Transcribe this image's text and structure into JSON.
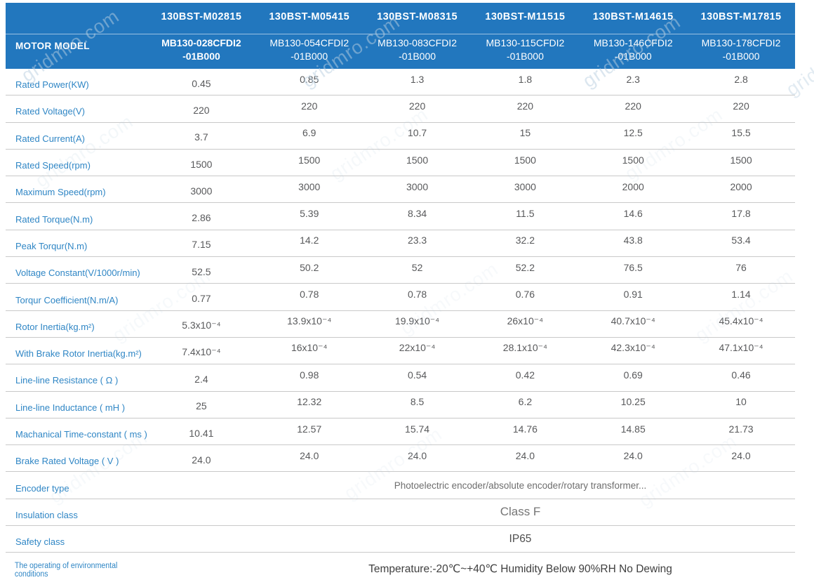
{
  "watermark": {
    "text": "gridmro.com"
  },
  "table": {
    "corner_label": "MOTOR MODEL",
    "models": [
      {
        "series": "130BST-M02815",
        "code": "MB130-028CFDI2",
        "code2": "-01B000"
      },
      {
        "series": "130BST-M05415",
        "code": "MB130-054CFDI2",
        "code2": "-01B000"
      },
      {
        "series": "130BST-M08315",
        "code": "MB130-083CFDI2",
        "code2": "-01B000"
      },
      {
        "series": "130BST-M11515",
        "code": "MB130-115CFDI2",
        "code2": "-01B000"
      },
      {
        "series": "130BST-M14615",
        "code": "MB130-146CFDI2",
        "code2": "-01B000"
      },
      {
        "series": "130BST-M17815",
        "code": "MB130-178CFDI2",
        "code2": "-01B000"
      }
    ],
    "spec_rows": [
      {
        "label": "Rated Power(KW)",
        "values": [
          "0.45",
          "0.85",
          "1.3",
          "1.8",
          "2.3",
          "2.8"
        ]
      },
      {
        "label": "Rated Voltage(V)",
        "values": [
          "220",
          "220",
          "220",
          "220",
          "220",
          "220"
        ]
      },
      {
        "label": "Rated Current(A)",
        "values": [
          "3.7",
          "6.9",
          "10.7",
          "15",
          "12.5",
          "15.5"
        ]
      },
      {
        "label": "Rated Speed(rpm)",
        "values": [
          "1500",
          "1500",
          "1500",
          "1500",
          "1500",
          "1500"
        ]
      },
      {
        "label": "Maximum Speed(rpm)",
        "values": [
          "3000",
          "3000",
          "3000",
          "3000",
          "2000",
          "2000"
        ]
      },
      {
        "label": "Rated Torque(N.m)",
        "values": [
          "2.86",
          "5.39",
          "8.34",
          "11.5",
          "14.6",
          "17.8"
        ]
      },
      {
        "label": "Peak Torqur(N.m)",
        "values": [
          "7.15",
          "14.2",
          "23.3",
          "32.2",
          "43.8",
          "53.4"
        ]
      },
      {
        "label": "Voltage Constant(V/1000r/min)",
        "values": [
          "52.5",
          "50.2",
          "52",
          "52.2",
          "76.5",
          "76"
        ]
      },
      {
        "label": "Torqur Coefficient(N.m/A)",
        "values": [
          "0.77",
          "0.78",
          "0.78",
          "0.76",
          "0.91",
          "1.14"
        ]
      },
      {
        "label": "Rotor Inertia(kg.m²)",
        "values": [
          "5.3x10⁻⁴",
          "13.9x10⁻⁴",
          "19.9x10⁻⁴",
          "26x10⁻⁴",
          "40.7x10⁻⁴",
          "45.4x10⁻⁴"
        ]
      },
      {
        "label": "With Brake Rotor Inertia(kg.m²)",
        "values": [
          "7.4x10⁻⁴",
          "16x10⁻⁴",
          "22x10⁻⁴",
          "28.1x10⁻⁴",
          "42.3x10⁻⁴",
          "47.1x10⁻⁴"
        ]
      },
      {
        "label": "Line-line Resistance ( Ω )",
        "values": [
          "2.4",
          "0.98",
          "0.54",
          "0.42",
          "0.69",
          "0.46"
        ]
      },
      {
        "label": "Line-line Inductance ( mH )",
        "values": [
          "25",
          "12.32",
          "8.5",
          "6.2",
          "10.25",
          "10"
        ]
      },
      {
        "label": "Machanical Time-constant ( ms )",
        "values": [
          "10.41",
          "12.57",
          "15.74",
          "14.76",
          "14.85",
          "21.73"
        ]
      },
      {
        "label": "Brake Rated Voltage ( V )",
        "values": [
          "24.0",
          "24.0",
          "24.0",
          "24.0",
          "24.0",
          "24.0"
        ]
      }
    ],
    "span_rows": [
      {
        "label": "Encoder type",
        "kind": "encoder",
        "value": "Photoelectric encoder/absolute encoder/rotary transformer..."
      },
      {
        "label": "Insulation class",
        "kind": "insulation",
        "value": "Class F"
      },
      {
        "label": "Safety class",
        "kind": "safety",
        "value": "IP65"
      },
      {
        "label": "The operating of environmental conditions",
        "kind": "environment",
        "value": "Temperature:-20℃~+40℃  Humidity Below 90%RH No Dewing"
      }
    ]
  },
  "colors": {
    "header_bg": "#2277be",
    "label_blue": "#2f86c5",
    "value_gray": "#58595b",
    "divider": "#c9c9c9"
  }
}
